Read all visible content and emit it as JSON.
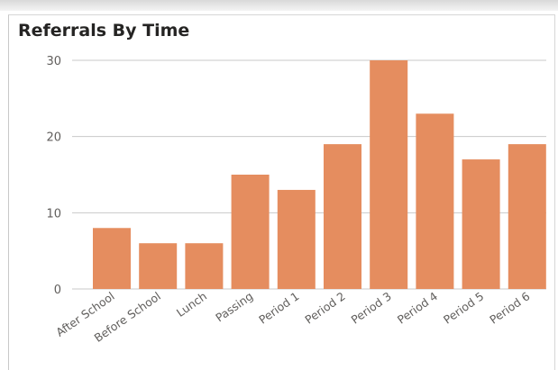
{
  "chart_data": {
    "type": "bar",
    "title": "Referrals By Time",
    "categories": [
      "After School",
      "Before School",
      "Lunch",
      "Passing",
      "Period 1",
      "Period 2",
      "Period 3",
      "Period 4",
      "Period 5",
      "Period 6"
    ],
    "values": [
      8,
      6,
      6,
      15,
      13,
      19,
      30,
      23,
      17,
      19
    ],
    "yticks": [
      "0",
      "10",
      "20",
      "30"
    ],
    "ylim": [
      0,
      30
    ],
    "xlabel": "",
    "ylabel": "",
    "grid": true,
    "legend": "none",
    "bar_color": "#e58d5f",
    "grid_color": "#c8c8c8",
    "tick_color": "#605e5c"
  }
}
